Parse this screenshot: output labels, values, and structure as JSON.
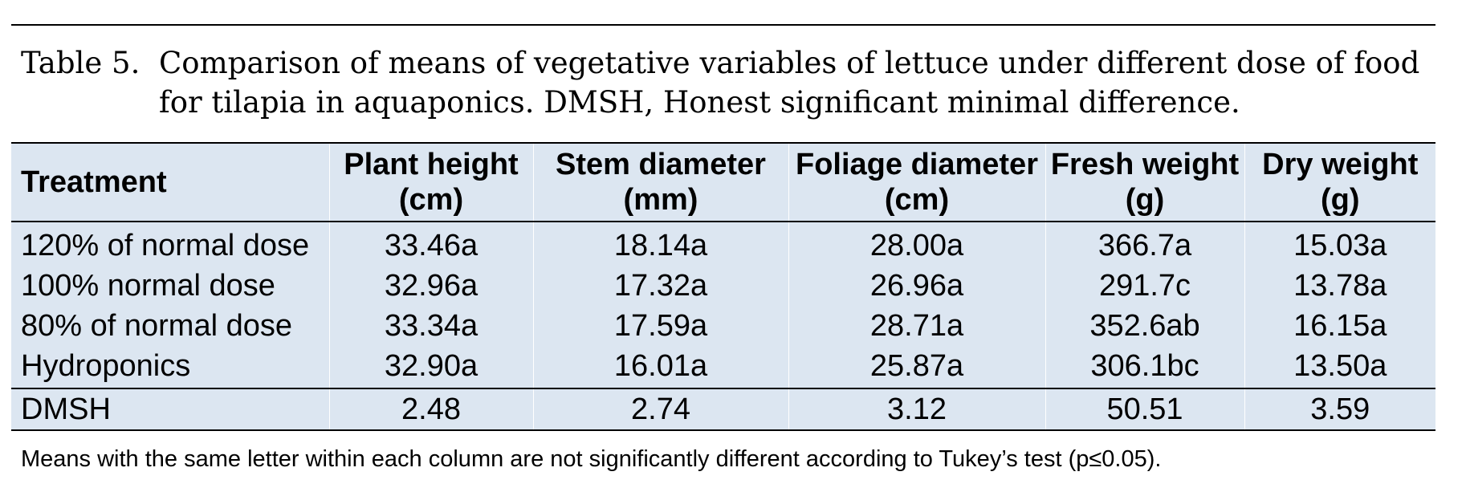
{
  "caption": {
    "label": "Table 5.",
    "line1": "Comparison of means of vegetative variables of lettuce under different dose of food",
    "line2": "for tilapia in aquaponics. DMSH, Honest significant minimal difference."
  },
  "table": {
    "headers": [
      {
        "line1": "Treatment",
        "line2": ""
      },
      {
        "line1": "Plant height",
        "line2": "(cm)"
      },
      {
        "line1": "Stem diameter",
        "line2": "(mm)"
      },
      {
        "line1": "Foliage diameter",
        "line2": "(cm)"
      },
      {
        "line1": "Fresh weight",
        "line2": "(g)"
      },
      {
        "line1": "Dry weight",
        "line2": "(g)"
      }
    ],
    "rows": [
      [
        "120% of normal dose",
        "33.46a",
        "18.14a",
        "28.00a",
        "366.7a",
        "15.03a"
      ],
      [
        "100% normal dose",
        "32.96a",
        "17.32a",
        "26.96a",
        "291.7c",
        "13.78a"
      ],
      [
        "80% of normal dose",
        "33.34a",
        "17.59a",
        "28.71a",
        "352.6ab",
        "16.15a"
      ],
      [
        "Hydroponics",
        "32.90a",
        "16.01a",
        "25.87a",
        "306.1bc",
        "13.50a"
      ]
    ],
    "dmsh_row": [
      "DMSH",
      "2.48",
      "2.74",
      "3.12",
      "50.51",
      "3.59"
    ]
  },
  "footnote": "Means with the same letter within each column are not significantly different according to Tukey’s test (p≤0.05).",
  "colors": {
    "table_background": "#dce6f1",
    "rule": "#000000"
  }
}
